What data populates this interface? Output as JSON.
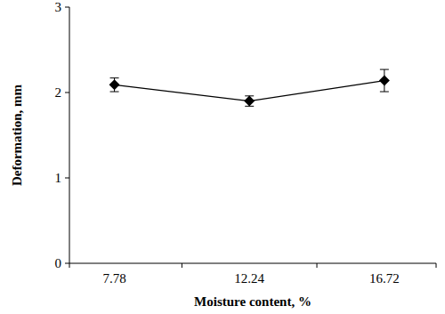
{
  "chart_data": {
    "type": "line",
    "x_label": "Moisture content, %",
    "y_label": "Deformation, mm",
    "categories": [
      "7.78",
      "12.24",
      "16.72"
    ],
    "values": [
      2.09,
      1.9,
      2.14
    ],
    "errors": [
      0.08,
      0.06,
      0.13
    ],
    "color": "#000000",
    "marker": "diamond",
    "ylim": [
      0,
      3
    ],
    "yticks": [
      0,
      1,
      2,
      3
    ],
    "grid": false
  }
}
